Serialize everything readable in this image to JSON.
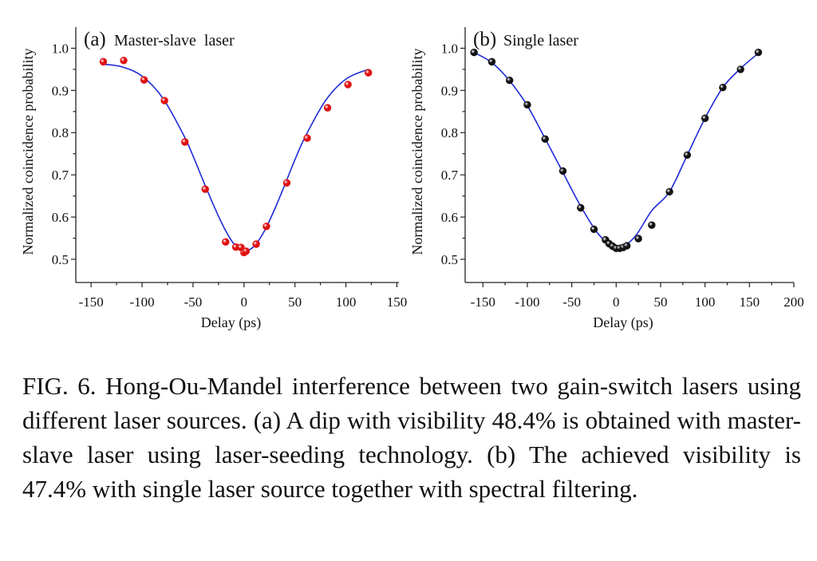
{
  "figure": {
    "caption": "FIG. 6.  Hong-Ou-Mandel interference between two gain-switch lasers using different laser sources. (a) A dip with visibility 48.4% is obtained with master-slave laser using laser-seeding technology. (b) The achieved visibility is 47.4% with single laser source together with spectral filtering."
  },
  "chart_data": [
    {
      "type": "scatter",
      "panel_letter": "(a)",
      "title": "Master-slave  laser",
      "xlabel": "Delay (ps)",
      "ylabel": "Normalized coincidence probability",
      "xlim": [
        -165,
        152
      ],
      "ylim": [
        0.445,
        1.05
      ],
      "xticks": [
        -150,
        -100,
        -50,
        0,
        50,
        100,
        150
      ],
      "xtick_labels": [
        "-150",
        "-100",
        "-50",
        "0",
        "50",
        "100",
        "150"
      ],
      "yticks": [
        0.5,
        0.6,
        0.7,
        0.8,
        0.9,
        1.0
      ],
      "ytick_labels": [
        "0.5",
        "0.6",
        "0.7",
        "0.8",
        "0.9",
        "1.0"
      ],
      "grid": false,
      "marker_color": "#e01010",
      "line_color": "#1f2bd6",
      "series": [
        {
          "kind": "points",
          "x": [
            -138,
            -118,
            -98,
            -78,
            -58,
            -38,
            -18,
            -8,
            -3,
            0,
            2,
            12,
            22,
            42,
            62,
            82,
            102,
            122
          ],
          "y": [
            0.968,
            0.971,
            0.925,
            0.876,
            0.778,
            0.666,
            0.541,
            0.529,
            0.528,
            0.516,
            0.519,
            0.536,
            0.578,
            0.681,
            0.787,
            0.859,
            0.914,
            0.942
          ]
        },
        {
          "kind": "fit",
          "x": [
            -138,
            -120,
            -100,
            -80,
            -60,
            -50,
            -40,
            -30,
            -20,
            -10,
            0,
            10,
            20,
            30,
            40,
            50,
            60,
            80,
            100,
            122
          ],
          "y": [
            0.962,
            0.956,
            0.934,
            0.883,
            0.798,
            0.745,
            0.686,
            0.629,
            0.577,
            0.537,
            0.52,
            0.531,
            0.567,
            0.618,
            0.676,
            0.736,
            0.79,
            0.876,
            0.927,
            0.95
          ]
        }
      ]
    },
    {
      "type": "scatter",
      "panel_letter": "(b)",
      "title": "Single laser",
      "xlabel": "Delay (ps)",
      "ylabel": "Normalized coincidence probability",
      "xlim": [
        -170,
        200
      ],
      "ylim": [
        0.445,
        1.05
      ],
      "xticks": [
        -150,
        -100,
        -50,
        0,
        50,
        100,
        150,
        200
      ],
      "xtick_labels": [
        "-150",
        "-100",
        "-50",
        "0",
        "50",
        "100",
        "150",
        "200"
      ],
      "yticks": [
        0.5,
        0.6,
        0.7,
        0.8,
        0.9,
        1.0
      ],
      "ytick_labels": [
        "0.5",
        "0.6",
        "0.7",
        "0.8",
        "0.9",
        "1.0"
      ],
      "grid": false,
      "marker_color": "#111111",
      "line_color": "#1f2bd6",
      "series": [
        {
          "kind": "points",
          "x": [
            -160,
            -140,
            -120,
            -100,
            -80,
            -60,
            -40,
            -25,
            -12,
            -8,
            -4,
            0,
            4,
            8,
            12,
            25,
            40,
            60,
            80,
            100,
            120,
            140,
            160
          ],
          "y": [
            0.99,
            0.968,
            0.924,
            0.866,
            0.785,
            0.709,
            0.622,
            0.571,
            0.546,
            0.537,
            0.531,
            0.526,
            0.526,
            0.528,
            0.532,
            0.549,
            0.581,
            0.66,
            0.747,
            0.834,
            0.907,
            0.95,
            0.99
          ]
        },
        {
          "kind": "fit",
          "x": [
            -160,
            -140,
            -120,
            -100,
            -80,
            -60,
            -40,
            -20,
            0,
            20,
            40,
            60,
            80,
            100,
            120,
            140,
            160
          ],
          "y": [
            0.99,
            0.966,
            0.923,
            0.864,
            0.786,
            0.706,
            0.626,
            0.56,
            0.526,
            0.551,
            0.615,
            0.66,
            0.747,
            0.834,
            0.907,
            0.952,
            0.988
          ]
        }
      ]
    }
  ]
}
